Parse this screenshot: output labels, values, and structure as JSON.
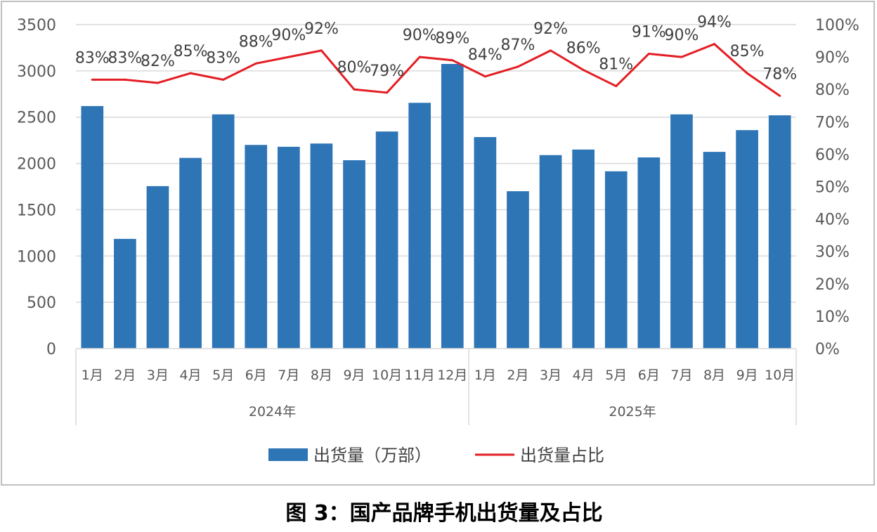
{
  "chart_data": {
    "type": "bar+line",
    "title": "图 3：国产品牌手机出货量及占比",
    "categories": [
      "1月",
      "2月",
      "3月",
      "4月",
      "5月",
      "6月",
      "7月",
      "8月",
      "9月",
      "10月",
      "11月",
      "12月",
      "1月",
      "2月",
      "3月",
      "4月",
      "5月",
      "6月",
      "7月",
      "8月",
      "9月",
      "10月"
    ],
    "groups": [
      {
        "label": "2024年",
        "count": 12
      },
      {
        "label": "2025年",
        "count": 10
      }
    ],
    "series": [
      {
        "name": "出货量（万部）",
        "type": "bar",
        "axis": "left",
        "color": "#2E75B6",
        "values": [
          2620,
          1185,
          1755,
          2060,
          2530,
          2200,
          2180,
          2215,
          2035,
          2345,
          2655,
          3075,
          2285,
          1700,
          2090,
          2150,
          1915,
          2065,
          2530,
          2125,
          2360,
          2520
        ]
      },
      {
        "name": "出货量占比",
        "type": "line",
        "axis": "right",
        "color": "#E31E24",
        "values": [
          83,
          83,
          82,
          85,
          83,
          88,
          90,
          92,
          80,
          79,
          90,
          89,
          84,
          87,
          92,
          86,
          81,
          91,
          90,
          94,
          85,
          78
        ],
        "labels": [
          "83%",
          "83%",
          "82%",
          "85%",
          "83%",
          "88%",
          "90%",
          "92%",
          "80%",
          "79%",
          "90%",
          "89%",
          "84%",
          "87%",
          "92%",
          "86%",
          "81%",
          "91%",
          "90%",
          "94%",
          "85%",
          "78%"
        ]
      }
    ],
    "y_left": {
      "range": [
        0,
        3500
      ],
      "ticks": [
        "0",
        "500",
        "1000",
        "1500",
        "2000",
        "2500",
        "3000",
        "3500"
      ]
    },
    "y_right": {
      "range": [
        0,
        100
      ],
      "ticks": [
        "0%",
        "10%",
        "20%",
        "30%",
        "40%",
        "50%",
        "60%",
        "70%",
        "80%",
        "90%",
        "100%"
      ]
    },
    "grid": true,
    "legend": "bottom"
  }
}
